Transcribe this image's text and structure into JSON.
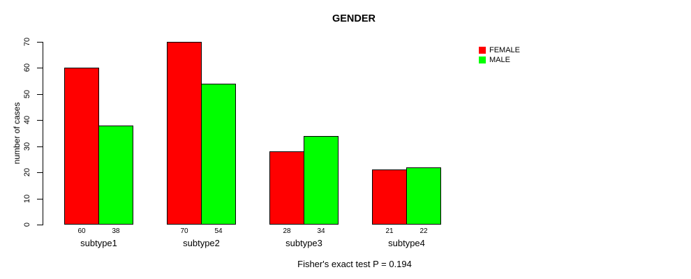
{
  "chart_data": {
    "type": "bar",
    "title": "GENDER",
    "xlabel": "",
    "ylabel": "number of cases",
    "categories": [
      "subtype1",
      "subtype2",
      "subtype3",
      "subtype4"
    ],
    "series": [
      {
        "name": "FEMALE",
        "color": "#ff0000",
        "values": [
          60,
          70,
          28,
          21
        ]
      },
      {
        "name": "MALE",
        "color": "#00ff00",
        "values": [
          38,
          54,
          34,
          22
        ]
      }
    ],
    "ylim": [
      0,
      70
    ],
    "yticks": [
      0,
      10,
      20,
      30,
      40,
      50,
      60,
      70
    ],
    "grid": false,
    "bar_value_labels_shown": true,
    "legend_position": "right",
    "annotation": "Fisher's exact test P = 0.194"
  },
  "colors": {
    "female": "#ff0000",
    "male": "#00ff00",
    "axis": "#000000",
    "background": "#ffffff"
  }
}
